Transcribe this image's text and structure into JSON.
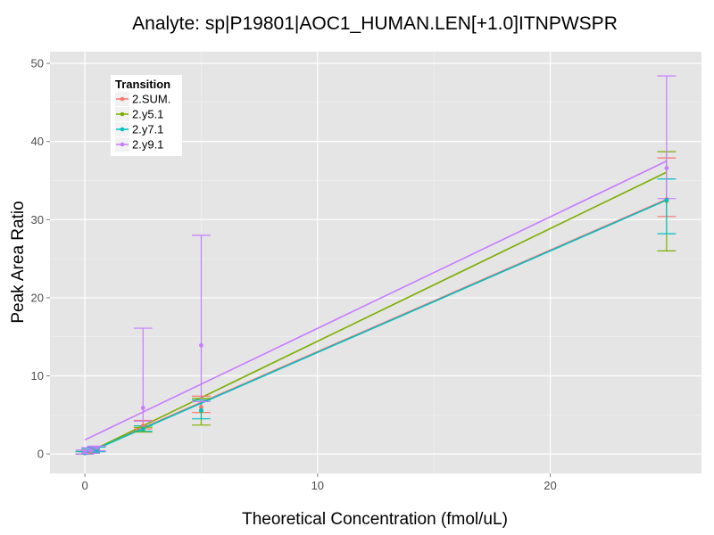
{
  "chart_data": {
    "type": "line",
    "title": "Analyte: sp|P19801|AOC1_HUMAN.LEN[+1.0]ITNPWSPR",
    "xlabel": "Theoretical Concentration (fmol/uL)",
    "ylabel": "Peak Area Ratio",
    "xlim": [
      -1.5,
      26.5
    ],
    "ylim": [
      -2.5,
      51.5
    ],
    "x_ticks": [
      0,
      10,
      20
    ],
    "y_ticks": [
      0,
      10,
      20,
      30,
      40,
      50
    ],
    "grid": true,
    "legend": {
      "title": "Transition",
      "placement": "top-left"
    },
    "series": [
      {
        "name": "2.SUM.",
        "color": "#F8766D",
        "points": [
          {
            "x": 0,
            "y": 0.1,
            "ymin": 0.0,
            "ymax": 0.3
          },
          {
            "x": 0.25,
            "y": 0.3,
            "ymin": 0.1,
            "ymax": 0.5
          },
          {
            "x": 0.5,
            "y": 0.7,
            "ymin": 0.4,
            "ymax": 0.9
          },
          {
            "x": 2.5,
            "y": 3.6,
            "ymin": 3.2,
            "ymax": 4.3
          },
          {
            "x": 5,
            "y": 6.0,
            "ymin": 5.3,
            "ymax": 7.4
          },
          {
            "x": 25,
            "y": 32.6,
            "ymin": 30.4,
            "ymax": 37.9
          }
        ],
        "fit": {
          "slope": 1.3,
          "intercept": 0.1
        }
      },
      {
        "name": "2.y5.1",
        "color": "#7CAE00",
        "points": [
          {
            "x": 0,
            "y": 0.1,
            "ymin": 0.0,
            "ymax": 0.3
          },
          {
            "x": 0.25,
            "y": 0.3,
            "ymin": 0.1,
            "ymax": 0.5
          },
          {
            "x": 0.5,
            "y": 0.6,
            "ymin": 0.3,
            "ymax": 0.9
          },
          {
            "x": 2.5,
            "y": 3.1,
            "ymin": 2.8,
            "ymax": 3.4
          },
          {
            "x": 5,
            "y": 5.5,
            "ymin": 3.7,
            "ymax": 7.1
          },
          {
            "x": 25,
            "y": 32.4,
            "ymin": 26.0,
            "ymax": 38.7
          }
        ],
        "fit": {
          "slope": 1.443,
          "intercept": 0.0
        }
      },
      {
        "name": "2.y7.1",
        "color": "#00BFC4",
        "points": [
          {
            "x": 0,
            "y": 0.1,
            "ymin": 0.0,
            "ymax": 0.3
          },
          {
            "x": 0.25,
            "y": 0.4,
            "ymin": 0.2,
            "ymax": 0.7
          },
          {
            "x": 0.5,
            "y": 0.6,
            "ymin": 0.3,
            "ymax": 0.9
          },
          {
            "x": 2.5,
            "y": 3.2,
            "ymin": 2.9,
            "ymax": 3.6
          },
          {
            "x": 5,
            "y": 5.6,
            "ymin": 4.5,
            "ymax": 6.9
          },
          {
            "x": 25,
            "y": 32.5,
            "ymin": 28.2,
            "ymax": 35.2
          }
        ],
        "fit": {
          "slope": 1.3,
          "intercept": 0.0
        }
      },
      {
        "name": "2.y9.1",
        "color": "#C77CFF",
        "points": [
          {
            "x": 0,
            "y": 0.2,
            "ymin": 0.0,
            "ymax": 0.5
          },
          {
            "x": 0.25,
            "y": 0.4,
            "ymin": 0.1,
            "ymax": 0.8
          },
          {
            "x": 0.5,
            "y": 0.8,
            "ymin": 0.4,
            "ymax": 1.0
          },
          {
            "x": 2.5,
            "y": 5.9,
            "ymin": 4.2,
            "ymax": 16.1
          },
          {
            "x": 5,
            "y": 13.9,
            "ymin": 6.7,
            "ymax": 28.0
          },
          {
            "x": 25,
            "y": 36.6,
            "ymin": 32.7,
            "ymax": 48.4
          }
        ],
        "fit": {
          "slope": 1.428,
          "intercept": 1.8
        }
      }
    ]
  }
}
